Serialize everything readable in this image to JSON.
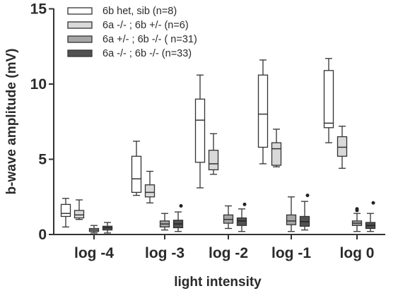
{
  "chart_data": {
    "type": "box",
    "xlabel": "light intensity",
    "ylabel": "b-wave amplitude (mV)",
    "ylim": [
      0,
      15
    ],
    "yticks": [
      0,
      5,
      10,
      15
    ],
    "categories": [
      "log -4",
      "log -3",
      "log -2",
      "log -1",
      "log 0"
    ],
    "legend_position": "top-left",
    "series": [
      {
        "name": "6b het, sib (n=8)",
        "color": "#ffffff",
        "boxes": [
          {
            "min": 0.5,
            "q1": 1.2,
            "median": 1.4,
            "q3": 2.0,
            "max": 2.4,
            "outliers": []
          },
          {
            "min": 2.6,
            "q1": 2.8,
            "median": 3.7,
            "q3": 5.2,
            "max": 6.2,
            "outliers": []
          },
          {
            "min": 3.1,
            "q1": 4.8,
            "median": 7.6,
            "q3": 9.0,
            "max": 10.6,
            "outliers": []
          },
          {
            "min": 4.7,
            "q1": 5.8,
            "median": 8.0,
            "q3": 10.6,
            "max": 11.6,
            "outliers": []
          },
          {
            "min": 6.1,
            "q1": 7.1,
            "median": 7.4,
            "q3": 10.9,
            "max": 11.7,
            "outliers": []
          }
        ]
      },
      {
        "name": "6a -/- ; 6b +/- (n=6)",
        "color": "#d9d9d9",
        "boxes": [
          {
            "min": 1.0,
            "q1": 1.1,
            "median": 1.3,
            "q3": 1.6,
            "max": 2.3,
            "outliers": []
          },
          {
            "min": 2.1,
            "q1": 2.5,
            "median": 2.8,
            "q3": 3.3,
            "max": 4.2,
            "outliers": []
          },
          {
            "min": 4.0,
            "q1": 4.3,
            "median": 4.7,
            "q3": 5.6,
            "max": 6.7,
            "outliers": []
          },
          {
            "min": 4.5,
            "q1": 4.6,
            "median": 5.7,
            "q3": 6.1,
            "max": 7.0,
            "outliers": []
          },
          {
            "min": 4.4,
            "q1": 5.2,
            "median": 5.8,
            "q3": 6.5,
            "max": 7.2,
            "outliers": []
          }
        ]
      },
      {
        "name": "6a +/- ; 6b -/- ( n=31)",
        "color": "#a6a6a6",
        "boxes": [
          {
            "min": 0.1,
            "q1": 0.2,
            "median": 0.3,
            "q3": 0.4,
            "max": 0.6,
            "outliers": []
          },
          {
            "min": 0.3,
            "q1": 0.5,
            "median": 0.7,
            "q3": 0.9,
            "max": 1.4,
            "outliers": []
          },
          {
            "min": 0.4,
            "q1": 0.75,
            "median": 1.0,
            "q3": 1.3,
            "max": 1.9,
            "outliers": []
          },
          {
            "min": 0.2,
            "q1": 0.65,
            "median": 0.9,
            "q3": 1.3,
            "max": 2.5,
            "outliers": []
          },
          {
            "min": 0.2,
            "q1": 0.6,
            "median": 0.75,
            "q3": 0.9,
            "max": 1.4,
            "outliers": [
              1.6,
              1.7
            ]
          }
        ]
      },
      {
        "name": "6a -/- ; 6b -/- (n=33)",
        "color": "#525252",
        "boxes": [
          {
            "min": 0.1,
            "q1": 0.3,
            "median": 0.45,
            "q3": 0.55,
            "max": 0.8,
            "outliers": []
          },
          {
            "min": 0.2,
            "q1": 0.45,
            "median": 0.7,
            "q3": 0.95,
            "max": 1.5,
            "outliers": [
              1.9
            ]
          },
          {
            "min": 0.2,
            "q1": 0.6,
            "median": 0.9,
            "q3": 1.1,
            "max": 1.7,
            "outliers": [
              2.0
            ]
          },
          {
            "min": 0.3,
            "q1": 0.55,
            "median": 0.85,
            "q3": 1.2,
            "max": 2.2,
            "outliers": [
              2.6
            ]
          },
          {
            "min": 0.2,
            "q1": 0.4,
            "median": 0.6,
            "q3": 0.8,
            "max": 1.4,
            "outliers": [
              2.1
            ]
          }
        ]
      }
    ]
  }
}
